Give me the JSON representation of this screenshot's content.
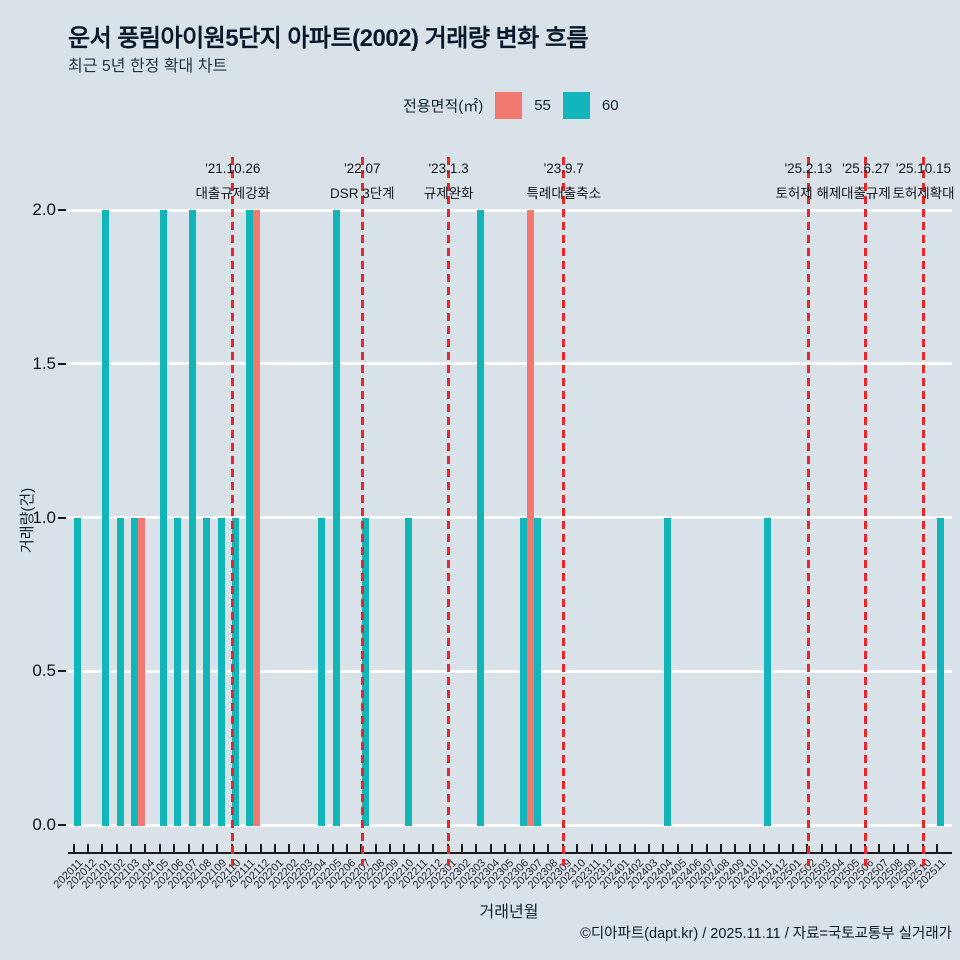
{
  "chart_data": {
    "type": "bar",
    "title": "운서 풍림아이원5단지 아파트(2002) 거래량 변화 흐름",
    "subtitle": "최근 5년 한정 확대 차트",
    "xlabel": "거래년월",
    "ylabel": "거래량(건)",
    "ylim": [
      0,
      2
    ],
    "yticks": [
      "0.0",
      "0.5",
      "1.0",
      "1.5",
      "2.0"
    ],
    "grid": "horizontal-white",
    "legend_position": "top-center",
    "legend_title": "전용면적(㎡)",
    "categories": [
      "202011",
      "202012",
      "202101",
      "202102",
      "202103",
      "202104",
      "202105",
      "202106",
      "202107",
      "202108",
      "202109",
      "202110",
      "202111",
      "202112",
      "202201",
      "202202",
      "202203",
      "202204",
      "202205",
      "202206",
      "202207",
      "202208",
      "202209",
      "202210",
      "202211",
      "202212",
      "202301",
      "202302",
      "202303",
      "202304",
      "202305",
      "202306",
      "202307",
      "202308",
      "202309",
      "202310",
      "202311",
      "202312",
      "202401",
      "202402",
      "202403",
      "202404",
      "202405",
      "202406",
      "202407",
      "202408",
      "202409",
      "202410",
      "202411",
      "202412",
      "202501",
      "202502",
      "202503",
      "202504",
      "202505",
      "202506",
      "202507",
      "202508",
      "202509",
      "202510",
      "202511"
    ],
    "series": [
      {
        "name": "55",
        "color": "#f2796f",
        "values": [
          0,
          0,
          0,
          0,
          0,
          1,
          0,
          0,
          0,
          0,
          0,
          0,
          0,
          2,
          0,
          0,
          0,
          0,
          0,
          0,
          0,
          0,
          0,
          0,
          0,
          0,
          0,
          0,
          0,
          0,
          0,
          0,
          2,
          0,
          0,
          0,
          0,
          0,
          0,
          0,
          0,
          0,
          0,
          0,
          0,
          0,
          0,
          0,
          0,
          0,
          0,
          0,
          0,
          0,
          0,
          0,
          0,
          0,
          0,
          0,
          0
        ]
      },
      {
        "name": "60",
        "color": "#12b5ba",
        "values": [
          1,
          0,
          2,
          1,
          1,
          0,
          2,
          1,
          2,
          1,
          1,
          1,
          2,
          0,
          0,
          0,
          0,
          1,
          2,
          0,
          1,
          0,
          0,
          1,
          0,
          0,
          0,
          0,
          2,
          0,
          0,
          1,
          1,
          0,
          0,
          0,
          0,
          0,
          0,
          0,
          0,
          1,
          0,
          0,
          0,
          0,
          0,
          0,
          1,
          0,
          0,
          0,
          0,
          0,
          0,
          0,
          0,
          0,
          0,
          0,
          1
        ]
      }
    ],
    "annotations": [
      {
        "date": "'21.10.26",
        "label": "대출규제강화",
        "month": "202110"
      },
      {
        "date": "'22.07",
        "label": "DSR 3단계",
        "month": "202207"
      },
      {
        "date": "'23.1.3",
        "label": "규제완화",
        "month": "202301"
      },
      {
        "date": "'23.9.7",
        "label": "특례대출축소",
        "month": "202309"
      },
      {
        "date": "'25.2.13",
        "label": "토허제 해제",
        "month": "202502"
      },
      {
        "date": "'25.6.27",
        "label": "대출규제",
        "month": "202506"
      },
      {
        "date": "'25.10.15",
        "label": "토허제확대",
        "month": "202510"
      }
    ]
  },
  "footer": {
    "credit": "©디아파트(dapt.kr) / 2025.11.11 / 자료=국토교통부 실거래가"
  },
  "colors": {
    "background": "#d9e2e8",
    "bar_55": "#f2796f",
    "bar_60": "#12b5ba",
    "annotation_line": "#e8262c",
    "gridline": "#ffffff",
    "axis": "#1a1a1a",
    "title_text": "#08192b"
  }
}
